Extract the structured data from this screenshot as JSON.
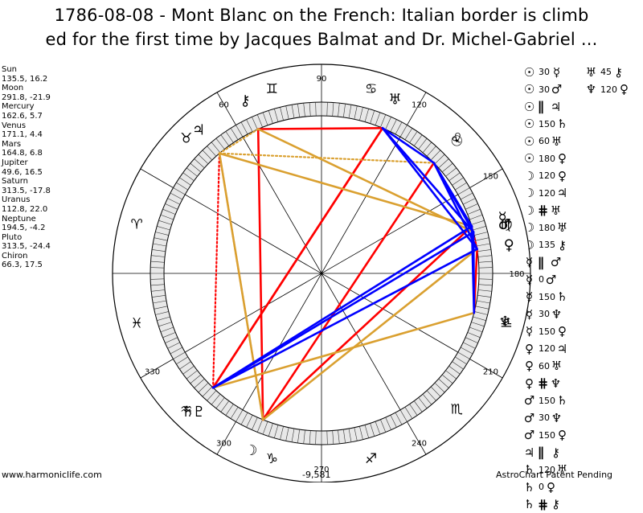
{
  "header": {
    "title": "1786-08-08 - Mont Blanc on the French: Italian border is climb\ned for the first time by Jacques Balmat and Dr. Michel-Gabriel ..."
  },
  "planets": [
    {
      "name": "Sun",
      "coords": "135.5, 16.2"
    },
    {
      "name": "Moon",
      "coords": "291.8, -21.9"
    },
    {
      "name": "Mercury",
      "coords": "162.6, 5.7"
    },
    {
      "name": "Venus",
      "coords": "171.1, 4.4"
    },
    {
      "name": "Mars",
      "coords": "164.8, 6.8"
    },
    {
      "name": "Jupiter",
      "coords": "49.6, 16.5"
    },
    {
      "name": "Saturn",
      "coords": "313.5, -17.8"
    },
    {
      "name": "Uranus",
      "coords": "112.8, 22.0"
    },
    {
      "name": "Neptune",
      "coords": "194.5, -4.2"
    },
    {
      "name": "Pluto",
      "coords": "313.5, -24.4"
    },
    {
      "name": "Chiron",
      "coords": "66.3, 17.5"
    }
  ],
  "wheel": {
    "degree_labels": [
      {
        "text": "90",
        "deg": 90
      },
      {
        "text": "60",
        "deg": 60
      },
      {
        "text": "120",
        "deg": 120
      },
      {
        "text": "150",
        "deg": 150
      },
      {
        "text": "180",
        "deg": 180
      },
      {
        "text": "210",
        "deg": 210
      },
      {
        "text": "240",
        "deg": 240
      },
      {
        "text": "270",
        "deg": 270
      },
      {
        "text": "300",
        "deg": 300
      },
      {
        "text": "330",
        "deg": 330
      }
    ],
    "zodiac_signs": [
      {
        "glyph": "♈",
        "name": "aries",
        "deg": 15
      },
      {
        "glyph": "♉",
        "name": "taurus",
        "deg": 45
      },
      {
        "glyph": "♊",
        "name": "gemini",
        "deg": 75
      },
      {
        "glyph": "♋",
        "name": "cancer",
        "deg": 105
      },
      {
        "glyph": "♌",
        "name": "leo",
        "deg": 135
      },
      {
        "glyph": "♍",
        "name": "virgo",
        "deg": 165
      },
      {
        "glyph": "♎",
        "name": "libra",
        "deg": 195
      },
      {
        "glyph": "♏",
        "name": "scorpio",
        "deg": 225
      },
      {
        "glyph": "♐",
        "name": "sagittarius",
        "deg": 255
      },
      {
        "glyph": "♑",
        "name": "capricorn",
        "deg": 285
      },
      {
        "glyph": "♒",
        "name": "aquarius",
        "deg": 315
      },
      {
        "glyph": "♓",
        "name": "pisces",
        "deg": 345
      }
    ],
    "bodies": [
      {
        "key": "sun",
        "glyph": "☉",
        "deg": 135.5
      },
      {
        "key": "moon",
        "glyph": "☽",
        "deg": 291.8
      },
      {
        "key": "mercury",
        "glyph": "☿",
        "deg": 162.6
      },
      {
        "key": "venus",
        "glyph": "♀",
        "deg": 171.1
      },
      {
        "key": "mars",
        "glyph": "♂",
        "deg": 164.8
      },
      {
        "key": "jupiter",
        "glyph": "♃",
        "deg": 49.6
      },
      {
        "key": "saturn",
        "glyph": "♄",
        "deg": 313.5
      },
      {
        "key": "uranus",
        "glyph": "♅",
        "deg": 112.8
      },
      {
        "key": "neptune",
        "glyph": "♆",
        "deg": 194.5
      },
      {
        "key": "pluto",
        "glyph": "♇",
        "deg": 313.5
      },
      {
        "key": "chiron",
        "glyph": "⚷",
        "deg": 66.3
      }
    ],
    "aspect_lines": [
      {
        "a": "sun",
        "b": "moon",
        "color": "#ff0000",
        "style": "solid"
      },
      {
        "a": "uranus",
        "b": "chiron",
        "color": "#ff0000",
        "style": "solid"
      },
      {
        "a": "chiron",
        "b": "moon",
        "color": "#ff0000",
        "style": "solid"
      },
      {
        "a": "uranus",
        "b": "saturn",
        "color": "#ff0000",
        "style": "solid"
      },
      {
        "a": "uranus",
        "b": "pluto",
        "color": "#ff0000",
        "style": "solid"
      },
      {
        "a": "venus",
        "b": "neptune",
        "color": "#ff0000",
        "style": "solid"
      },
      {
        "a": "mercury",
        "b": "moon",
        "color": "#ff0000",
        "style": "solid"
      },
      {
        "a": "jupiter",
        "b": "pluto",
        "color": "#ff0000",
        "style": "dotted"
      },
      {
        "a": "jupiter",
        "b": "moon",
        "color": "#ff0000",
        "style": "dotted"
      },
      {
        "a": "mercury",
        "b": "venus",
        "color": "#ff0000",
        "style": "dotted"
      },
      {
        "a": "jupiter",
        "b": "mercury",
        "color": "#daa030",
        "style": "solid"
      },
      {
        "a": "jupiter",
        "b": "moon",
        "color": "#daa030",
        "style": "solid"
      },
      {
        "a": "neptune",
        "b": "saturn",
        "color": "#daa030",
        "style": "solid"
      },
      {
        "a": "venus",
        "b": "moon",
        "color": "#daa030",
        "style": "solid"
      },
      {
        "a": "mars",
        "b": "chiron",
        "color": "#daa030",
        "style": "solid"
      },
      {
        "a": "sun",
        "b": "jupiter",
        "color": "#daa030",
        "style": "dotted"
      },
      {
        "a": "chiron",
        "b": "jupiter",
        "color": "#daa030",
        "style": "dotted"
      },
      {
        "a": "uranus",
        "b": "sun",
        "color": "#0000ff",
        "style": "solid"
      },
      {
        "a": "uranus",
        "b": "mars",
        "color": "#0000ff",
        "style": "solid"
      },
      {
        "a": "uranus",
        "b": "venus",
        "color": "#0000ff",
        "style": "solid"
      },
      {
        "a": "sun",
        "b": "mars",
        "color": "#0000ff",
        "style": "solid"
      },
      {
        "a": "sun",
        "b": "mercury",
        "color": "#0000ff",
        "style": "solid"
      },
      {
        "a": "sun",
        "b": "venus",
        "color": "#0000ff",
        "style": "solid"
      },
      {
        "a": "mars",
        "b": "neptune",
        "color": "#0000ff",
        "style": "solid"
      },
      {
        "a": "mercury",
        "b": "neptune",
        "color": "#0000ff",
        "style": "solid"
      },
      {
        "a": "mercury",
        "b": "saturn",
        "color": "#0000ff",
        "style": "solid"
      },
      {
        "a": "mars",
        "b": "saturn",
        "color": "#0000ff",
        "style": "solid"
      },
      {
        "a": "venus",
        "b": "pluto",
        "color": "#0000ff",
        "style": "solid"
      }
    ]
  },
  "aspects_col1": [
    {
      "g1": "☉",
      "val": "30",
      "sym": "",
      "g2": "☿"
    },
    {
      "g1": "☉",
      "val": "30",
      "sym": "",
      "g2": "♂"
    },
    {
      "g1": "☉",
      "val": "",
      "sym": "∥",
      "g2": "♃"
    },
    {
      "g1": "☉",
      "val": "150",
      "sym": "",
      "g2": "♄"
    },
    {
      "g1": "☉",
      "val": "60",
      "sym": "",
      "g2": "♅"
    },
    {
      "g1": "☉",
      "val": "180",
      "sym": "",
      "g2": "♀"
    },
    {
      "g1": "☽",
      "val": "120",
      "sym": "",
      "g2": "♀"
    },
    {
      "g1": "☽",
      "val": "120",
      "sym": "",
      "g2": "♃"
    },
    {
      "g1": "☽",
      "val": "",
      "sym": "⋕",
      "g2": "♅"
    },
    {
      "g1": "☽",
      "val": "180",
      "sym": "",
      "g2": "♅"
    },
    {
      "g1": "☽",
      "val": "135",
      "sym": "",
      "g2": "⚷"
    },
    {
      "g1": "☿",
      "val": "",
      "sym": "∥",
      "g2": "♂"
    },
    {
      "g1": "☿",
      "val": "0",
      "sym": "",
      "g2": "♂"
    },
    {
      "g1": "☿",
      "val": "150",
      "sym": "",
      "g2": "♄"
    },
    {
      "g1": "☿",
      "val": "30",
      "sym": "",
      "g2": "♆"
    },
    {
      "g1": "☿",
      "val": "150",
      "sym": "",
      "g2": "♀"
    },
    {
      "g1": "♀",
      "val": "120",
      "sym": "",
      "g2": "♃"
    },
    {
      "g1": "♀",
      "val": "60",
      "sym": "",
      "g2": "♅"
    },
    {
      "g1": "♀",
      "val": "",
      "sym": "⋕",
      "g2": "♆"
    },
    {
      "g1": "♂",
      "val": "150",
      "sym": "",
      "g2": "♄"
    },
    {
      "g1": "♂",
      "val": "30",
      "sym": "",
      "g2": "♆"
    },
    {
      "g1": "♂",
      "val": "150",
      "sym": "",
      "g2": "♀"
    },
    {
      "g1": "♃",
      "val": "",
      "sym": "∥",
      "g2": "⚷"
    },
    {
      "g1": "♄",
      "val": "120",
      "sym": "",
      "g2": "♅"
    },
    {
      "g1": "♄",
      "val": "0",
      "sym": "",
      "g2": "♀"
    },
    {
      "g1": "♄",
      "val": "",
      "sym": "⋕",
      "g2": "⚷"
    }
  ],
  "aspects_col2": [
    {
      "g1": "♅",
      "val": "45",
      "sym": "",
      "g2": "⚷"
    },
    {
      "g1": "♆",
      "val": "120",
      "sym": "",
      "g2": "♀"
    }
  ],
  "footer": {
    "left": "www.harmoniclife.com",
    "center": "-9,581",
    "right": "AstroChart Patent Pending"
  },
  "colors": {
    "square_opposition": "#ff0000",
    "trine_sextile": "#0000ff",
    "minor": "#daa030",
    "ring_bg": "#e8e8e8"
  }
}
